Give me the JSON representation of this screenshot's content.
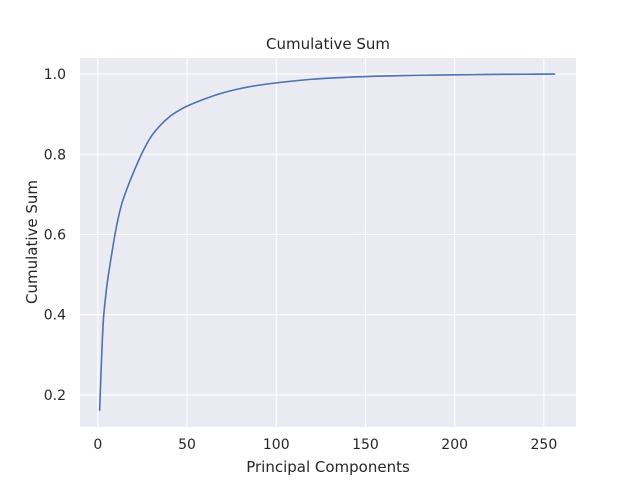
{
  "chart_data": {
    "type": "line",
    "title": "Cumulative Sum",
    "xlabel": "Principal Components",
    "ylabel": "Cumulative Sum",
    "xlim": [
      -10,
      268
    ],
    "ylim": [
      0.12,
      1.04
    ],
    "xticks": [
      0,
      50,
      100,
      150,
      200,
      250
    ],
    "xtick_labels": [
      "0",
      "50",
      "100",
      "150",
      "200",
      "250"
    ],
    "yticks": [
      0.2,
      0.4,
      0.6,
      0.8,
      1.0
    ],
    "ytick_labels": [
      "0.2",
      "0.4",
      "0.6",
      "0.8",
      "1.0"
    ],
    "grid": true,
    "background_color": "#eaeaf2",
    "grid_color": "#ffffff",
    "series": [
      {
        "name": "Cumulative Sum",
        "color": "#4c72b0",
        "x": [
          1,
          2,
          3,
          4,
          5,
          7,
          10,
          13,
          16,
          20,
          25,
          30,
          35,
          40,
          45,
          50,
          60,
          70,
          80,
          90,
          100,
          120,
          140,
          160,
          180,
          200,
          220,
          240,
          256
        ],
        "y": [
          0.162,
          0.28,
          0.38,
          0.43,
          0.47,
          0.53,
          0.61,
          0.67,
          0.71,
          0.755,
          0.805,
          0.845,
          0.872,
          0.893,
          0.908,
          0.92,
          0.938,
          0.953,
          0.964,
          0.972,
          0.978,
          0.987,
          0.992,
          0.995,
          0.997,
          0.998,
          0.999,
          0.9995,
          1.0
        ]
      }
    ]
  }
}
